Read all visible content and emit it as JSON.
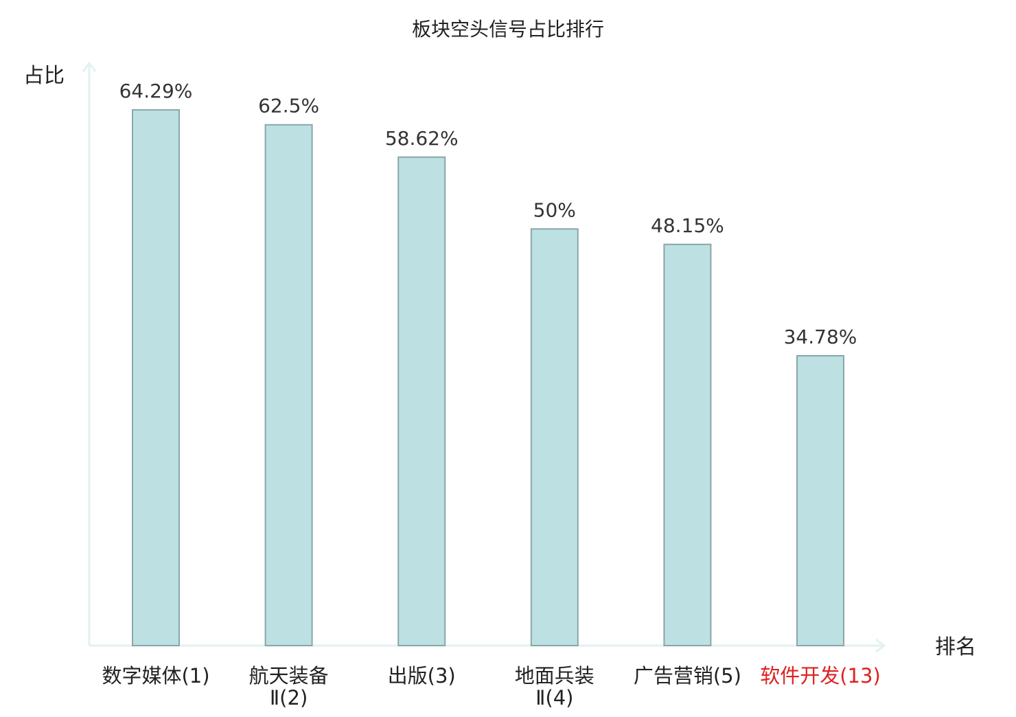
{
  "chart_data": {
    "type": "bar",
    "title": "板块空头信号占比排行",
    "ylabel": "占比",
    "xlabel": "排名",
    "categories": [
      {
        "lines": [
          "数字媒体(1)"
        ],
        "highlight": false
      },
      {
        "lines": [
          "航天装备",
          "Ⅱ(2)"
        ],
        "highlight": false
      },
      {
        "lines": [
          "出版(3)"
        ],
        "highlight": false
      },
      {
        "lines": [
          "地面兵装",
          "Ⅱ(4)"
        ],
        "highlight": false
      },
      {
        "lines": [
          "广告营销(5)"
        ],
        "highlight": false
      },
      {
        "lines": [
          "软件开发(13)"
        ],
        "highlight": true
      }
    ],
    "values": [
      64.29,
      62.5,
      58.62,
      50,
      48.15,
      34.78
    ],
    "value_labels": [
      "64.29%",
      "62.5%",
      "58.62%",
      "50%",
      "48.15%",
      "34.78%"
    ],
    "ylim": [
      0,
      80
    ],
    "grid": false,
    "legend": "none",
    "colors": {
      "bar_fill": "#bde0e2",
      "bar_stroke": "#8aa6a8",
      "axis": "#e2f2f0",
      "text": "#333333",
      "title": "#222222",
      "highlight": "#e02020"
    }
  }
}
